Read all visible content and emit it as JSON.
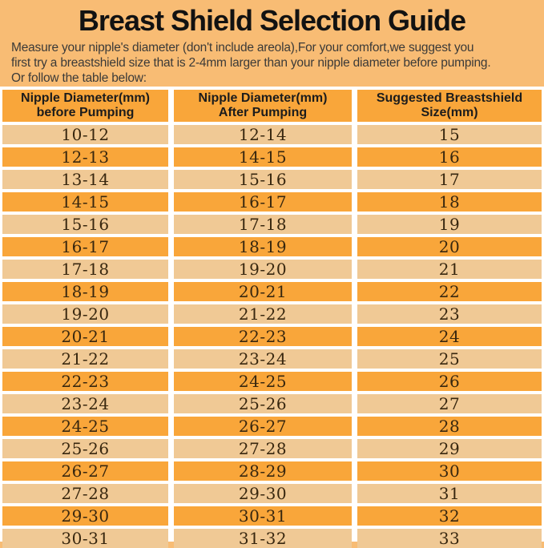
{
  "page": {
    "title": "Breast Shield Selection Guide",
    "intro_lines": [
      "Measure your nipple's diameter   (don't include areola),For your comfort,we suggest you",
      "first try a breastshield size that is 2-4mm larger than your nipple diameter before pumping.",
      "Or follow the table below:"
    ]
  },
  "colors": {
    "background": "#F8BC74",
    "row_orange": "#F9A63A",
    "row_light": "#F0C995",
    "divider_white": "#FFFFFF",
    "title_text": "#121212",
    "intro_text": "#3B3A38",
    "number_text": "#38270F",
    "header_text": "#1C1C1C"
  },
  "table": {
    "headers": [
      {
        "line1": "Nipple Diameter(mm)",
        "line2": "before Pumping"
      },
      {
        "line1": "Nipple Diameter(mm)",
        "line2": "After Pumping"
      },
      {
        "line1": "Suggested Breastshield",
        "line2": "Size(mm)"
      }
    ],
    "rows": [
      [
        "10-12",
        "12-14",
        "15"
      ],
      [
        "12-13",
        "14-15",
        "16"
      ],
      [
        "13-14",
        "15-16",
        "17"
      ],
      [
        "14-15",
        "16-17",
        "18"
      ],
      [
        "15-16",
        "17-18",
        "19"
      ],
      [
        "16-17",
        "18-19",
        "20"
      ],
      [
        "17-18",
        "19-20",
        "21"
      ],
      [
        "18-19",
        "20-21",
        "22"
      ],
      [
        "19-20",
        "21-22",
        "23"
      ],
      [
        "20-21",
        "22-23",
        "24"
      ],
      [
        "21-22",
        "23-24",
        "25"
      ],
      [
        "22-23",
        "24-25",
        "26"
      ],
      [
        "23-24",
        "25-26",
        "27"
      ],
      [
        "24-25",
        "26-27",
        "28"
      ],
      [
        "25-26",
        "27-28",
        "29"
      ],
      [
        "26-27",
        "28-29",
        "30"
      ],
      [
        "27-28",
        "29-30",
        "31"
      ],
      [
        "29-30",
        "30-31",
        "32"
      ],
      [
        "30-31",
        "31-32",
        "33"
      ]
    ]
  }
}
